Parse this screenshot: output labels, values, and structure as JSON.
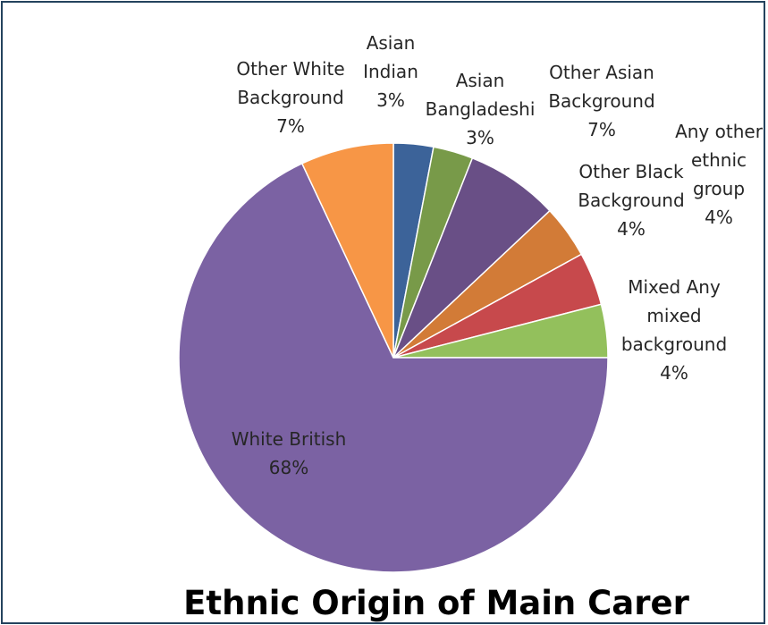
{
  "chart_data": {
    "type": "pie",
    "title": "Ethnic Origin of Main Carer",
    "start_angle_deg": 0,
    "direction": "clockwise",
    "slices": [
      {
        "key": "asian-indian",
        "label": [
          "Asian",
          "Indian",
          "3%"
        ],
        "value": 3,
        "color": "#3c6399"
      },
      {
        "key": "asian-bangladeshi",
        "label": [
          "Asian",
          "Bangladeshi",
          "3%"
        ],
        "value": 3,
        "color": "#789a49"
      },
      {
        "key": "other-asian-background",
        "label": [
          "Other Asian",
          "Background",
          "7%"
        ],
        "value": 7,
        "color": "#694f86"
      },
      {
        "key": "other-black-background",
        "label": [
          "Other Black",
          "Background",
          "4%"
        ],
        "value": 4,
        "color": "#d27b37"
      },
      {
        "key": "any-other-ethnic-group",
        "label": [
          "Any other",
          "ethnic",
          "group",
          "4%"
        ],
        "value": 4,
        "color": "#c7494c"
      },
      {
        "key": "mixed-any-mixed-background",
        "label": [
          "Mixed  Any",
          "mixed",
          "background",
          "4%"
        ],
        "value": 4,
        "color": "#93c05c"
      },
      {
        "key": "white-british",
        "label": [
          "White British",
          "68%"
        ],
        "value": 68,
        "color": "#7b62a3"
      },
      {
        "key": "other-white-background",
        "label": [
          "Other White",
          "Background",
          "7%"
        ],
        "value": 7,
        "color": "#f79646"
      }
    ]
  }
}
